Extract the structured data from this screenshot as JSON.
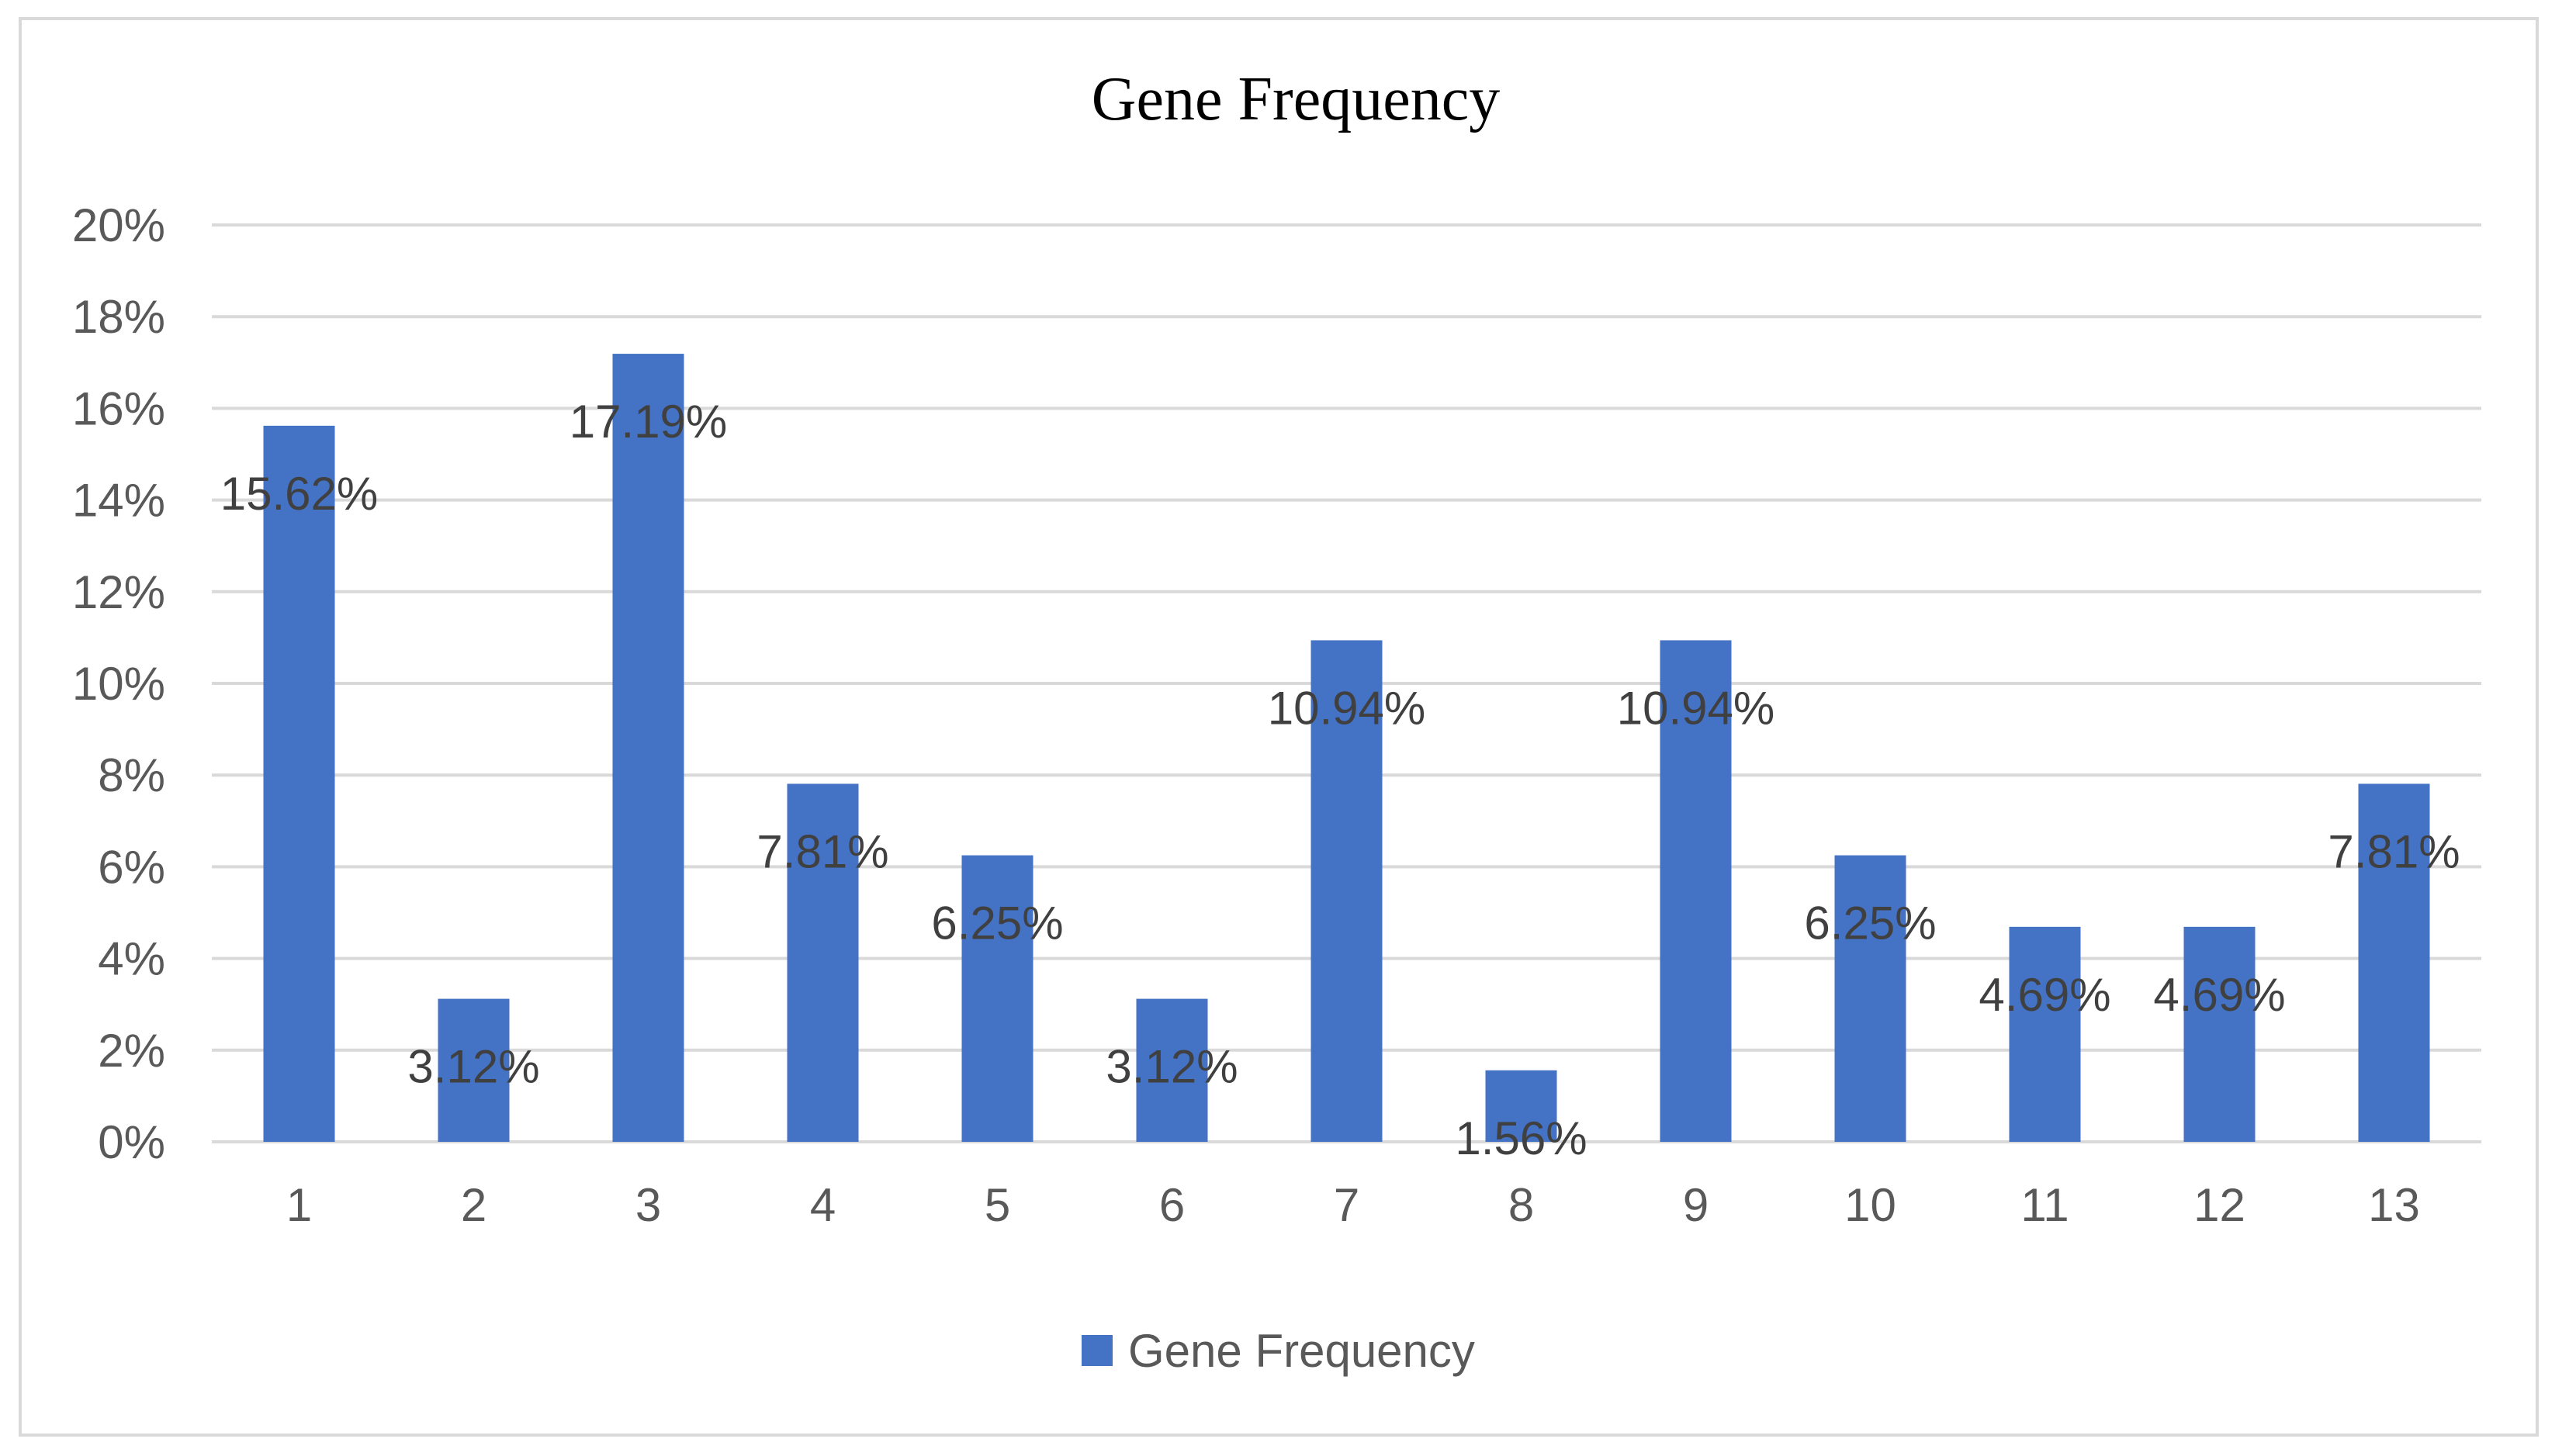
{
  "chart_data": {
    "type": "bar",
    "title": "Gene Frequency",
    "xlabel": "",
    "ylabel": "",
    "categories": [
      "1",
      "2",
      "3",
      "4",
      "5",
      "6",
      "7",
      "8",
      "9",
      "10",
      "11",
      "12",
      "13"
    ],
    "series": [
      {
        "name": "Gene Frequency",
        "color": "#4472c4",
        "values": [
          15.62,
          3.12,
          17.19,
          7.81,
          6.25,
          3.12,
          10.94,
          1.56,
          10.94,
          6.25,
          4.69,
          4.69,
          7.81
        ],
        "data_labels": [
          "15.62%",
          "3.12%",
          "17.19%",
          "7.81%",
          "6.25%",
          "3.12%",
          "10.94%",
          "1.56%",
          "10.94%",
          "6.25%",
          "4.69%",
          "4.69%",
          "7.81%"
        ]
      }
    ],
    "ylim": [
      0,
      20
    ],
    "yticks": [
      0,
      2,
      4,
      6,
      8,
      10,
      12,
      14,
      16,
      18,
      20
    ],
    "ytick_labels": [
      "0%",
      "2%",
      "4%",
      "6%",
      "8%",
      "10%",
      "12%",
      "14%",
      "16%",
      "18%",
      "20%"
    ],
    "grid": true,
    "legend_position": "bottom"
  }
}
